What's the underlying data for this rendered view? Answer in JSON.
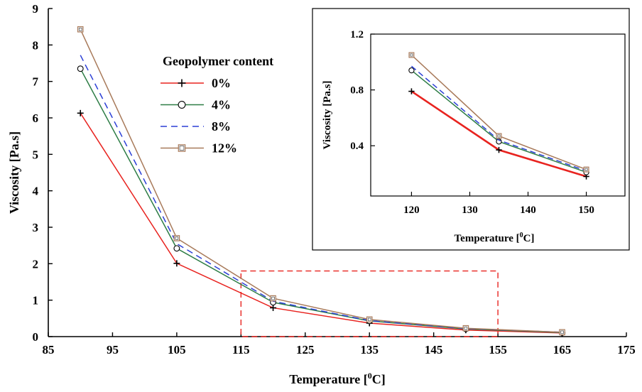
{
  "chart_data": [
    {
      "type": "line",
      "xlabel_prefix": "Temperature [",
      "xlabel_sup": "0",
      "xlabel_suffix": "C]",
      "ylabel": "Viscosity [Pa.s]",
      "xlim": [
        85,
        175
      ],
      "ylim": [
        0,
        9
      ],
      "xticks": [
        85,
        95,
        105,
        115,
        125,
        135,
        145,
        155,
        165,
        175
      ],
      "yticks": [
        0,
        1,
        2,
        3,
        4,
        5,
        6,
        7,
        8,
        9
      ],
      "grid": false,
      "legend_title": "Geopolymer content",
      "legend_position": "top-center",
      "x": [
        90,
        105,
        120,
        135,
        150,
        165
      ],
      "series": [
        {
          "name": "0%",
          "color": "#e8231f",
          "marker": "plus",
          "dash": "solid",
          "values": [
            6.13,
            2.01,
            0.79,
            0.37,
            0.18,
            0.1
          ]
        },
        {
          "name": "4%",
          "color": "#2e7d46",
          "marker": "circle",
          "dash": "solid",
          "values": [
            7.35,
            2.42,
            0.94,
            0.43,
            0.21,
            0.11
          ]
        },
        {
          "name": "8%",
          "color": "#2b3fd6",
          "marker": "none",
          "dash": "dashed",
          "values": [
            7.72,
            2.55,
            0.97,
            0.44,
            0.22,
            0.12
          ]
        },
        {
          "name": "12%",
          "color": "#a87a5a",
          "marker": "square",
          "dash": "solid",
          "values": [
            8.43,
            2.7,
            1.05,
            0.47,
            0.23,
            0.12
          ]
        }
      ],
      "zoom_region": {
        "x": [
          115,
          155
        ],
        "y": [
          0,
          1.8
        ],
        "color": "#e8231f"
      }
    },
    {
      "type": "line",
      "xlabel_prefix": "Temperature [",
      "xlabel_sup": "0",
      "xlabel_suffix": "C]",
      "ylabel": "Viscosity [Pa.s]",
      "xlim": [
        113,
        157
      ],
      "ylim": [
        0.04,
        1.2
      ],
      "xticks": [
        120,
        130,
        140,
        150
      ],
      "yticks": [
        0.4,
        0.8,
        1.2
      ],
      "ytick_labels": [
        "0.4",
        "0.8",
        "1.2"
      ],
      "grid": false,
      "x": [
        120,
        135,
        150
      ],
      "series": [
        {
          "name": "0%",
          "color": "#e8231f",
          "marker": "plus",
          "dash": "solid",
          "values": [
            0.79,
            0.37,
            0.18
          ]
        },
        {
          "name": "4%",
          "color": "#2e7d46",
          "marker": "circle",
          "dash": "solid",
          "values": [
            0.94,
            0.43,
            0.21
          ]
        },
        {
          "name": "8%",
          "color": "#2b3fd6",
          "marker": "none",
          "dash": "dashed",
          "values": [
            0.97,
            0.44,
            0.22
          ]
        },
        {
          "name": "12%",
          "color": "#a87a5a",
          "marker": "square",
          "dash": "solid",
          "values": [
            1.05,
            0.47,
            0.23
          ]
        }
      ]
    }
  ]
}
